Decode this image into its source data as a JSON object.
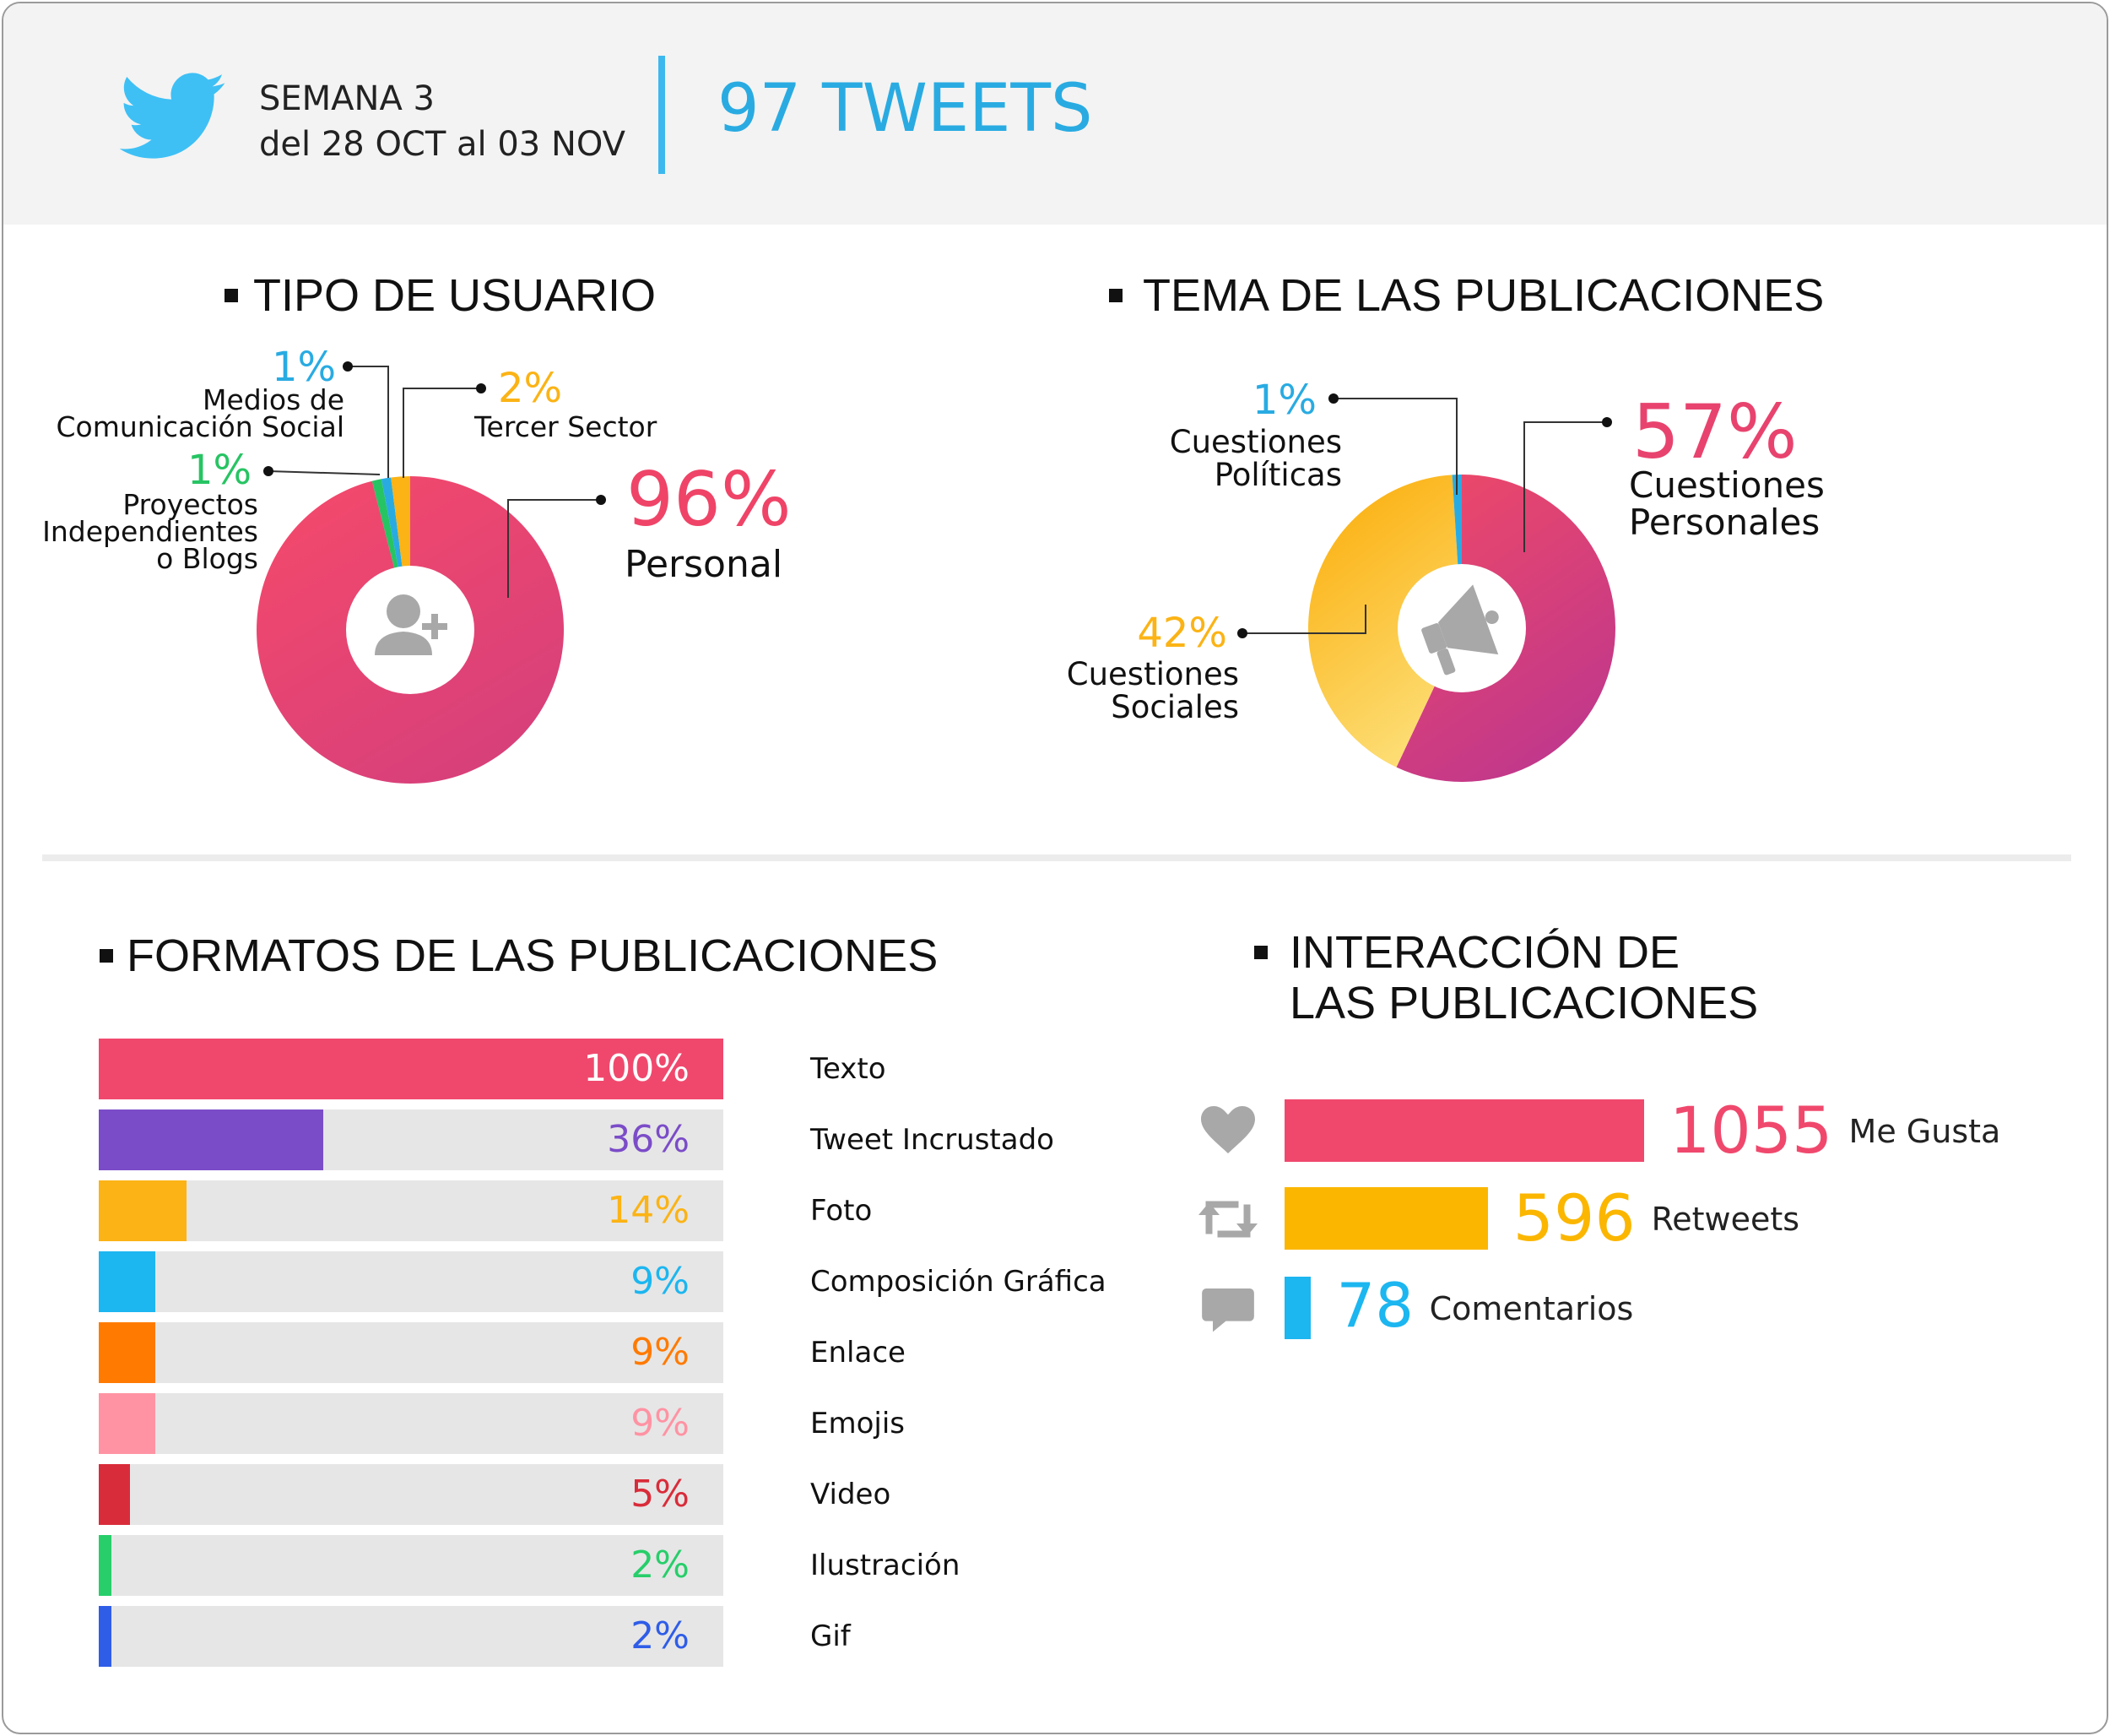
{
  "header": {
    "week": "SEMANA 3",
    "range": "del 28 OCT al 03 NOV",
    "tweets": "97 TWEETS",
    "accent": "#29abe2"
  },
  "icons": [
    "twitter-bird-icon",
    "user-add-icon",
    "megaphone-icon",
    "heart-icon",
    "retweet-icon",
    "comment-icon"
  ],
  "chart_data": [
    {
      "type": "pie",
      "title": "TIPO DE USUARIO",
      "slices": [
        {
          "label": "Personal",
          "value": 96,
          "pct_label": "96%",
          "color": "#f0466c"
        },
        {
          "label_lines": [
            "Proyectos",
            "Independientes",
            "o Blogs"
          ],
          "value": 1,
          "pct_label": "1%",
          "color": "#27c463"
        },
        {
          "label_lines": [
            "Medios de",
            "Comunicación Social"
          ],
          "value": 1,
          "pct_label": "1%",
          "color": "#29abe2"
        },
        {
          "label": "Tercer Sector",
          "value": 2,
          "pct_label": "2%",
          "color": "#fbb315"
        }
      ]
    },
    {
      "type": "pie",
      "title": "TEMA DE LAS PUBLICACIONES",
      "slices": [
        {
          "label_lines": [
            "Cuestiones",
            "Personales"
          ],
          "value": 57,
          "pct_label": "57%",
          "color": "#e8436e"
        },
        {
          "label_lines": [
            "Cuestiones",
            "Sociales"
          ],
          "value": 42,
          "pct_label": "42%",
          "color": "#fbb315"
        },
        {
          "label_lines": [
            "Cuestiones",
            "Políticas"
          ],
          "value": 1,
          "pct_label": "1%",
          "color": "#29abe2"
        }
      ]
    },
    {
      "type": "bar",
      "title": "FORMATOS DE LAS PUBLICACIONES",
      "orientation": "horizontal",
      "xlim": [
        0,
        100
      ],
      "categories": [
        "Texto",
        "Tweet Incrustado",
        "Foto",
        "Composición Gráfica",
        "Enlace",
        "Emojis",
        "Video",
        "Ilustración",
        "Gif"
      ],
      "values": [
        100,
        36,
        14,
        9,
        9,
        9,
        5,
        2,
        2
      ],
      "labels": [
        "100%",
        "36%",
        "14%",
        "9%",
        "9%",
        "9%",
        "5%",
        "2%",
        "2%"
      ],
      "colors": [
        "#f0486d",
        "#7b4cc8",
        "#fbb315",
        "#1cb6f0",
        "#ff7a00",
        "#ff93a3",
        "#d92c3a",
        "#27ce6a",
        "#2f5de8"
      ]
    },
    {
      "type": "bar",
      "title_lines": [
        "INTERACCIÓN DE",
        "LAS PUBLICACIONES"
      ],
      "orientation": "horizontal",
      "categories": [
        "Me Gusta",
        "Retweets",
        "Comentarios"
      ],
      "values": [
        1055,
        596,
        78
      ],
      "labels": [
        "1055",
        "596",
        "78"
      ],
      "colors": [
        "#f0486d",
        "#fbb600",
        "#1cb6f0"
      ]
    }
  ]
}
